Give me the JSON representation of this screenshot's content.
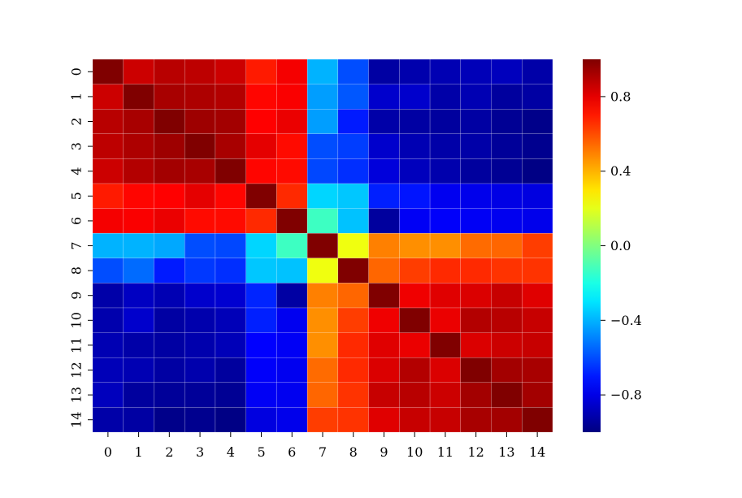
{
  "chart_data": {
    "type": "heatmap",
    "title": "",
    "xlabel": "",
    "ylabel": "",
    "x_tick_labels": [
      "0",
      "1",
      "2",
      "3",
      "4",
      "5",
      "6",
      "7",
      "8",
      "9",
      "10",
      "11",
      "12",
      "13",
      "14"
    ],
    "y_tick_labels": [
      "0",
      "1",
      "2",
      "3",
      "4",
      "5",
      "6",
      "7",
      "8",
      "9",
      "10",
      "11",
      "12",
      "13",
      "14"
    ],
    "colormap": "jet",
    "vmin": -1.0,
    "vmax": 1.0,
    "colorbar_ticks": [
      0.8,
      0.4,
      0.0,
      -0.4,
      -0.8
    ],
    "colorbar_tick_labels": [
      "0.8",
      "0.4",
      "0.0",
      "−0.4",
      "−0.8"
    ],
    "cell_grid_color": "#ffffff",
    "values": [
      [
        1.0,
        0.85,
        0.89,
        0.88,
        0.85,
        0.7,
        0.77,
        -0.4,
        -0.6,
        -0.93,
        -0.91,
        -0.9,
        -0.89,
        -0.88,
        -0.92
      ],
      [
        0.85,
        1.0,
        0.92,
        0.91,
        0.9,
        0.74,
        0.76,
        -0.44,
        -0.58,
        -0.85,
        -0.85,
        -0.92,
        -0.9,
        -0.94,
        -0.93
      ],
      [
        0.89,
        0.92,
        1.0,
        0.94,
        0.93,
        0.75,
        0.79,
        -0.44,
        -0.7,
        -0.92,
        -0.93,
        -0.94,
        -0.93,
        -0.96,
        -0.98
      ],
      [
        0.88,
        0.91,
        0.94,
        1.0,
        0.92,
        0.8,
        0.73,
        -0.6,
        -0.63,
        -0.85,
        -0.9,
        -0.92,
        -0.92,
        -0.95,
        -0.97
      ],
      [
        0.85,
        0.9,
        0.93,
        0.92,
        1.0,
        0.74,
        0.73,
        -0.61,
        -0.66,
        -0.82,
        -0.88,
        -0.91,
        -0.94,
        -0.96,
        -0.99
      ],
      [
        0.7,
        0.74,
        0.75,
        0.8,
        0.74,
        1.0,
        0.67,
        -0.33,
        -0.36,
        -0.69,
        -0.71,
        -0.78,
        -0.79,
        -0.8,
        -0.81
      ],
      [
        0.77,
        0.76,
        0.79,
        0.73,
        0.73,
        0.67,
        1.0,
        -0.13,
        -0.37,
        -0.94,
        -0.77,
        -0.76,
        -0.77,
        -0.78,
        -0.79
      ],
      [
        -0.4,
        -0.4,
        -0.42,
        -0.6,
        -0.61,
        -0.33,
        -0.13,
        1.0,
        0.22,
        0.5,
        0.47,
        0.47,
        0.54,
        0.55,
        0.63
      ],
      [
        -0.6,
        -0.54,
        -0.7,
        -0.64,
        -0.66,
        -0.36,
        -0.37,
        0.22,
        1.0,
        0.55,
        0.63,
        0.67,
        0.67,
        0.65,
        0.65
      ],
      [
        -0.92,
        -0.87,
        -0.9,
        -0.85,
        -0.84,
        -0.68,
        -0.93,
        0.5,
        0.55,
        1.0,
        0.78,
        0.81,
        0.82,
        0.86,
        0.81
      ],
      [
        -0.91,
        -0.85,
        -0.93,
        -0.91,
        -0.89,
        -0.69,
        -0.78,
        0.47,
        0.63,
        0.78,
        1.0,
        0.79,
        0.9,
        0.89,
        0.86
      ],
      [
        -0.9,
        -0.92,
        -0.93,
        -0.91,
        -0.89,
        -0.75,
        -0.77,
        0.47,
        0.67,
        0.81,
        0.79,
        1.0,
        0.82,
        0.85,
        0.86
      ],
      [
        -0.89,
        -0.9,
        -0.93,
        -0.91,
        -0.94,
        -0.76,
        -0.78,
        0.54,
        0.67,
        0.82,
        0.9,
        0.82,
        1.0,
        0.93,
        0.92
      ],
      [
        -0.88,
        -0.94,
        -0.95,
        -0.95,
        -0.96,
        -0.77,
        -0.78,
        0.55,
        0.65,
        0.86,
        0.89,
        0.85,
        0.93,
        1.0,
        0.93
      ],
      [
        -0.92,
        -0.93,
        -0.98,
        -0.97,
        -0.99,
        -0.81,
        -0.79,
        0.63,
        0.65,
        0.81,
        0.86,
        0.86,
        0.92,
        0.93,
        1.0
      ]
    ]
  }
}
